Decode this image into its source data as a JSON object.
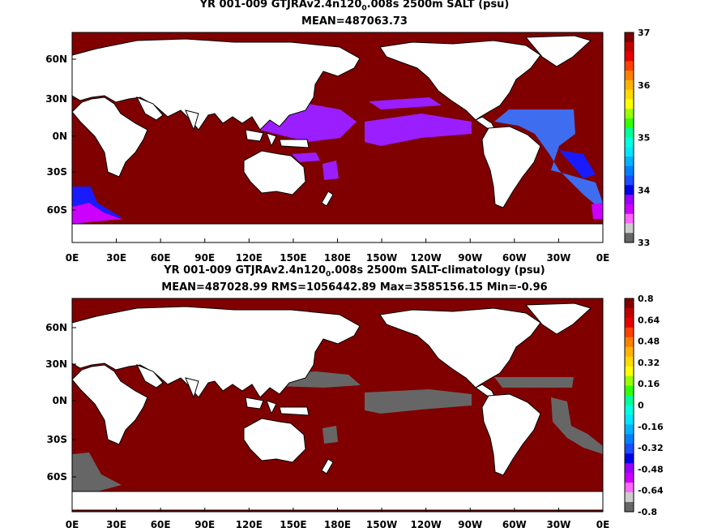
{
  "chart_data": [
    {
      "type": "heatmap",
      "title_pre": "YR 001-009 GTJRAv2.4n120",
      "title_sub": "0",
      "title_post": ".008s 2500m SALT (psu)",
      "subtitle": "MEAN=487063.73",
      "xticks": [
        "0E",
        "30E",
        "60E",
        "90E",
        "120E",
        "150E",
        "180E",
        "150W",
        "120W",
        "90W",
        "60W",
        "30W",
        "0E"
      ],
      "yticks": [
        "60N",
        "30N",
        "0N",
        "30S",
        "60S"
      ],
      "colorbar": {
        "labels": [
          "37",
          "36",
          "35",
          "34",
          "33"
        ],
        "colors": [
          "#800000",
          "#c00000",
          "#e60000",
          "#ff4000",
          "#ff8000",
          "#ffb300",
          "#ffd900",
          "#ffff00",
          "#99ff00",
          "#33ff00",
          "#00ff99",
          "#00ffe0",
          "#00e5ff",
          "#00b3ff",
          "#0080ff",
          "#1a4dff",
          "#0000e6",
          "#9a00ff",
          "#cc00ff",
          "#ff66ff",
          "#cccccc",
          "#666666"
        ]
      },
      "colors": {
        "land": "#ffffff",
        "ocean": "#800000",
        "purple": "#9a1eff",
        "blue": "#1a1aff",
        "lightblue": "#3f6df0",
        "magenta": "#cc00ff",
        "gray": "#666666"
      }
    },
    {
      "type": "heatmap",
      "title_pre": "YR 001-009 GTJRAv2.4n120",
      "title_sub": "0",
      "title_post": ".008s 2500m SALT-climatology (psu)",
      "subtitle": "MEAN=487028.99   RMS=1056442.89   Max=3585156.15   Min=-0.96",
      "xticks": [
        "0E",
        "30E",
        "60E",
        "90E",
        "120E",
        "150E",
        "180E",
        "150W",
        "120W",
        "90W",
        "60W",
        "30W",
        "0E"
      ],
      "yticks": [
        "60N",
        "30N",
        "0N",
        "30S",
        "60S"
      ],
      "colorbar": {
        "labels": [
          "0.8",
          "0.64",
          "0.48",
          "0.32",
          "0.16",
          "0",
          "-0.16",
          "-0.32",
          "-0.48",
          "-0.64",
          "-0.8"
        ],
        "colors": [
          "#800000",
          "#c00000",
          "#e60000",
          "#ff4000",
          "#ff8000",
          "#ffb300",
          "#ffd900",
          "#ffff00",
          "#99ff00",
          "#33ff00",
          "#00ff99",
          "#00ffe0",
          "#00e5ff",
          "#00b3ff",
          "#0080ff",
          "#1a4dff",
          "#0000e6",
          "#9a00ff",
          "#cc00ff",
          "#ff66ff",
          "#cccccc",
          "#666666"
        ]
      },
      "colors": {
        "land": "#ffffff",
        "ocean": "#800000",
        "gray": "#666666"
      }
    }
  ]
}
